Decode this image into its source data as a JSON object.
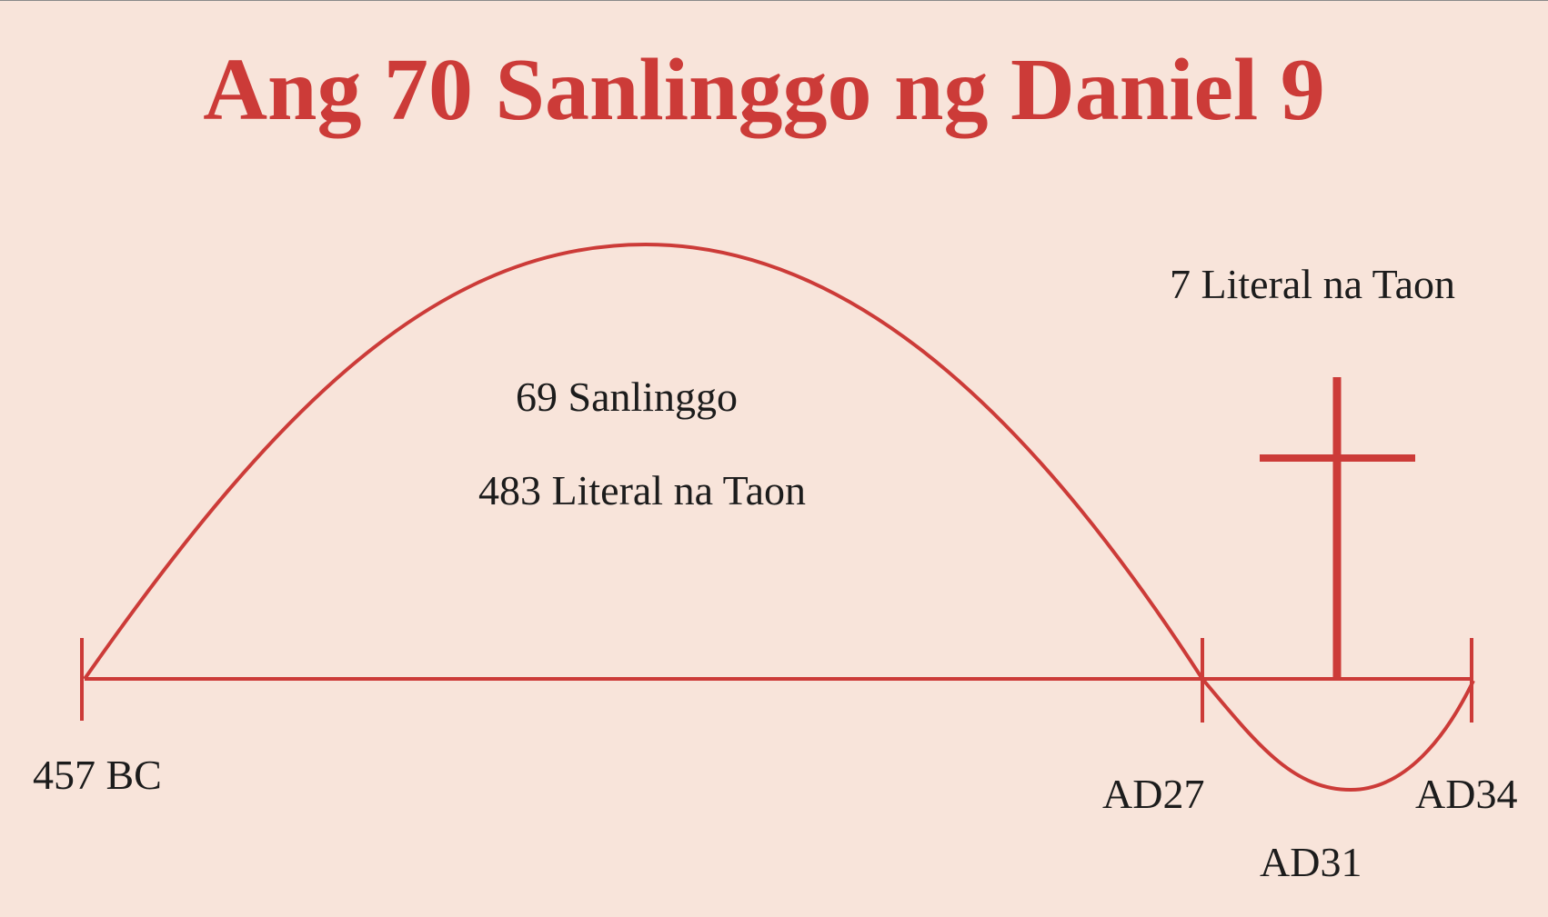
{
  "title": "Ang 70 Sanlinggo ng Daniel 9",
  "colors": {
    "accent": "#cc3b38",
    "background": "#f8e4da",
    "text": "#1c1c1c"
  },
  "arc_main": {
    "line1": "69 Sanlinggo",
    "line2": "483 Literal na Taon"
  },
  "arc_final": {
    "label": "7 Literal na Taon"
  },
  "cross_icon": "cross-icon",
  "timeline": {
    "start": "457 BC",
    "ad27": "AD27",
    "ad31": "AD31",
    "ad34": "AD34"
  }
}
